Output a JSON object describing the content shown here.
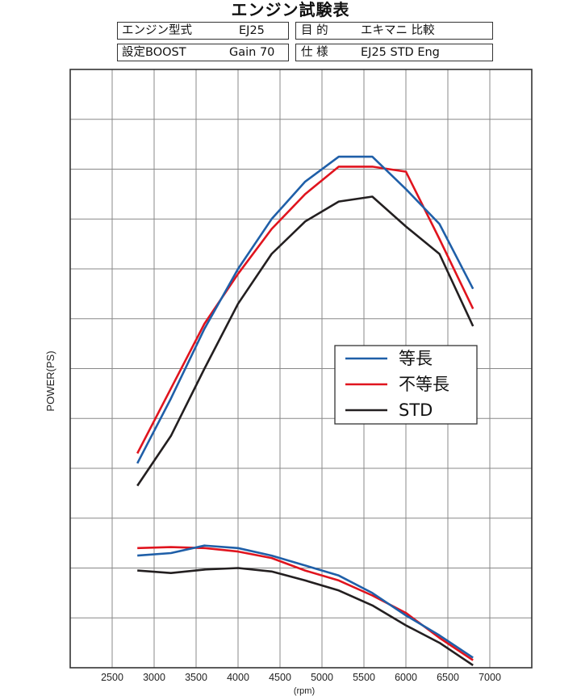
{
  "title": "エンジン試験表",
  "info": {
    "engine_type_label": "エンジン型式",
    "engine_type_value": "EJ25",
    "purpose_label": "目 的",
    "purpose_value": "エキマニ 比較",
    "boost_label": "設定BOOST",
    "boost_value": "Gain 70",
    "spec_label": "仕 様",
    "spec_value": "EJ25 STD Eng"
  },
  "colors": {
    "series_blue": "#1f5fa8",
    "series_red": "#e0141e",
    "series_black": "#231f20",
    "grid": "#888888",
    "frame": "#333333"
  },
  "chart_data": {
    "type": "line",
    "title": "エンジン試験表",
    "xlabel": "(rpm)",
    "ylabel": "POWER(PS)",
    "xlim": [
      2000,
      7500
    ],
    "ylim": [
      0,
      12
    ],
    "x_ticks": [
      "2500",
      "3000",
      "3500",
      "4000",
      "4500",
      "5000",
      "5500",
      "6000",
      "6500",
      "7000"
    ],
    "y_tick_labels_shown": false,
    "grid": true,
    "legend_position": "right-middle",
    "groups": [
      {
        "curve": "upper",
        "series": [
          {
            "name": "等長",
            "color": "#1f5fa8",
            "x": [
              2800,
              3200,
              3600,
              4000,
              4400,
              4800,
              5200,
              5600,
              6000,
              6400,
              6800
            ],
            "y": [
              4.1,
              5.4,
              6.8,
              8.0,
              9.0,
              9.75,
              10.25,
              10.25,
              9.6,
              8.9,
              7.6
            ]
          },
          {
            "name": "不等長",
            "color": "#e0141e",
            "x": [
              2800,
              3200,
              3600,
              4000,
              4400,
              4800,
              5200,
              5600,
              6000,
              6400,
              6800
            ],
            "y": [
              4.3,
              5.6,
              6.9,
              7.9,
              8.8,
              9.5,
              10.05,
              10.05,
              9.95,
              8.6,
              7.2
            ]
          },
          {
            "name": "STD",
            "color": "#231f20",
            "x": [
              2800,
              3200,
              3600,
              4000,
              4400,
              4800,
              5200,
              5600,
              6000,
              6400,
              6800
            ],
            "y": [
              3.65,
              4.65,
              6.0,
              7.3,
              8.3,
              8.95,
              9.35,
              9.45,
              8.85,
              8.3,
              6.85
            ]
          }
        ]
      },
      {
        "curve": "lower",
        "series": [
          {
            "name": "等長",
            "color": "#1f5fa8",
            "x": [
              2800,
              3200,
              3600,
              4000,
              4400,
              4800,
              5200,
              5600,
              6000,
              6400,
              6800
            ],
            "y": [
              2.25,
              2.3,
              2.45,
              2.4,
              2.25,
              2.05,
              1.85,
              1.5,
              1.05,
              0.65,
              0.2
            ]
          },
          {
            "name": "不等長",
            "color": "#e0141e",
            "x": [
              2800,
              3200,
              3600,
              4000,
              4400,
              4800,
              5200,
              5600,
              6000,
              6400,
              6800
            ],
            "y": [
              2.4,
              2.42,
              2.4,
              2.33,
              2.2,
              1.95,
              1.75,
              1.45,
              1.1,
              0.6,
              0.15
            ]
          },
          {
            "name": "STD",
            "color": "#231f20",
            "x": [
              2800,
              3200,
              3600,
              4000,
              4400,
              4800,
              5200,
              5600,
              6000,
              6400,
              6800
            ],
            "y": [
              1.95,
              1.9,
              1.97,
              2.0,
              1.93,
              1.75,
              1.55,
              1.25,
              0.85,
              0.5,
              0.05
            ]
          }
        ]
      }
    ],
    "legend": [
      "等長",
      "不等長",
      "STD"
    ]
  }
}
